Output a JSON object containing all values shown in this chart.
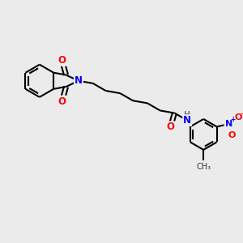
{
  "background_color": "#ebebeb",
  "bond_color": "#000000",
  "bond_width": 1.5,
  "atom_colors": {
    "N": "#0000FF",
    "O": "#FF0000",
    "H": "#708090"
  },
  "figsize": [
    3.0,
    3.0
  ],
  "dpi": 100
}
